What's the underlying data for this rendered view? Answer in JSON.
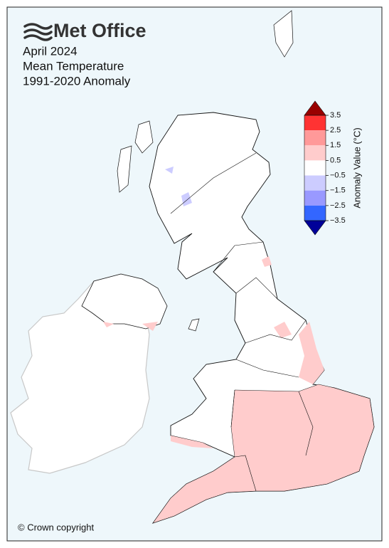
{
  "header": {
    "logo": "Met Office",
    "title_lines": [
      "April 2024",
      "Mean Temperature",
      "1991-2020 Anomaly"
    ]
  },
  "colorbar": {
    "label": "Anomaly Value (°C)",
    "lim": [
      -3.5,
      3.5
    ],
    "ticks": [
      {
        "value": 3.5,
        "label": "3.5"
      },
      {
        "value": 2.5,
        "label": "2.5"
      },
      {
        "value": 1.5,
        "label": "1.5"
      },
      {
        "value": 0.5,
        "label": "0.5"
      },
      {
        "value": -0.5,
        "label": "−0.5"
      },
      {
        "value": -1.5,
        "label": "−1.5"
      },
      {
        "value": -2.5,
        "label": "−2.5"
      },
      {
        "value": -3.5,
        "label": "−3.5"
      }
    ],
    "colors": [
      "#ff3333",
      "#ff9999",
      "#ffcccc",
      "#ffffff",
      "#ccccff",
      "#9999ff",
      "#3366ff"
    ],
    "over_color": "#990000",
    "under_color": "#000099"
  },
  "footer": {
    "copyright": "© Crown copyright"
  }
}
